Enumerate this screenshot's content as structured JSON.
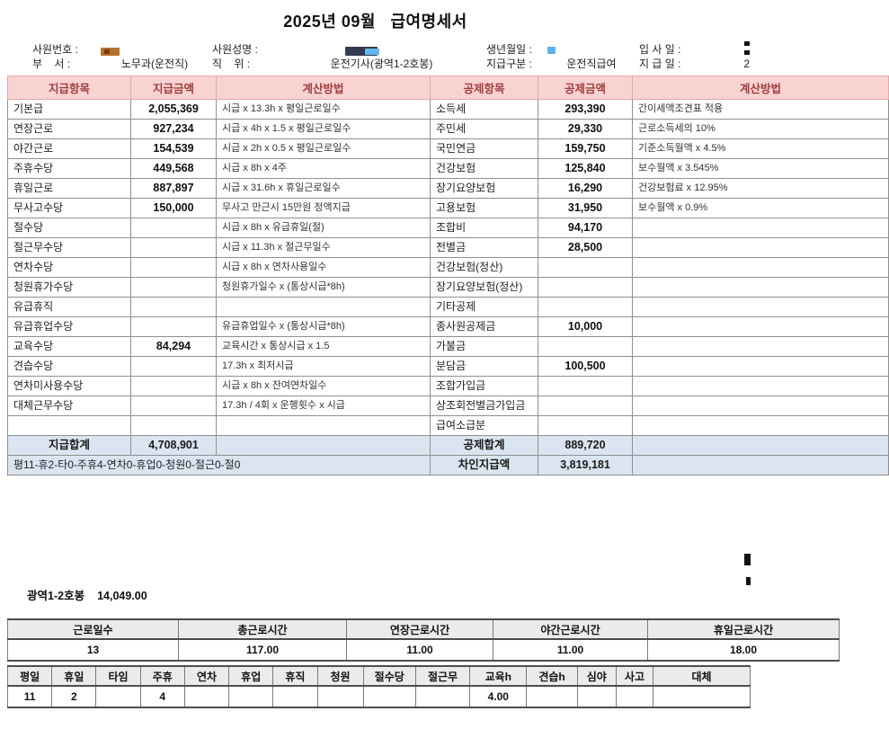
{
  "title": "2025년 09월   급여명세서",
  "employee_info": {
    "emp_no_label": "사원번호 :",
    "dept_label": "부    서 :",
    "dept_value": "노무과(운전직)",
    "name_label": "사원성명 :",
    "position_label": "직    위 :",
    "position_value": "운전기사(광역1-2호봉)",
    "birth_label": "생년월일 :",
    "pay_type_label": "지급구분 :",
    "pay_type_value": "운전직급여",
    "hire_date_label": "입 사 일 :",
    "pay_date_label": "지 급 일 :",
    "pay_date_value": "2"
  },
  "main_table": {
    "headers": [
      "지급항목",
      "지급금액",
      "계산방법",
      "공제항목",
      "공제금액",
      "계산방법"
    ],
    "rows": [
      {
        "pay_item": "기본급",
        "pay_amount": "2,055,369",
        "pay_calc": "시급 x 13.3h x 평일근로일수",
        "ded_item": "소득세",
        "ded_amount": "293,390",
        "ded_calc": "간이세액조견표 적용"
      },
      {
        "pay_item": "연장근로",
        "pay_amount": "927,234",
        "pay_calc": "시급 x 4h x 1.5 x 평일근로일수",
        "ded_item": "주민세",
        "ded_amount": "29,330",
        "ded_calc": "근로소득세의 10%"
      },
      {
        "pay_item": "야간근로",
        "pay_amount": "154,539",
        "pay_calc": "시급 x 2h x 0.5 x 평일근로일수",
        "ded_item": "국민연금",
        "ded_amount": "159,750",
        "ded_calc": "기준소득월액 x 4.5%"
      },
      {
        "pay_item": "주휴수당",
        "pay_amount": "449,568",
        "pay_calc": "시급 x 8h x 4주",
        "ded_item": "건강보험",
        "ded_amount": "125,840",
        "ded_calc": "보수월액 x 3.545%"
      },
      {
        "pay_item": "휴일근로",
        "pay_amount": "887,897",
        "pay_calc": "시급 x 31.6h x 휴일근로일수",
        "ded_item": "장기요양보험",
        "ded_amount": "16,290",
        "ded_calc": "건강보험료 x 12.95%"
      },
      {
        "pay_item": "무사고수당",
        "pay_amount": "150,000",
        "pay_calc": "무사고 만근시 15만원 정액지급",
        "ded_item": "고용보험",
        "ded_amount": "31,950",
        "ded_calc": "보수월액 x 0.9%"
      },
      {
        "pay_item": "절수당",
        "pay_amount": "",
        "pay_calc": "시급 x 8h x 유급휴일(절)",
        "ded_item": "조합비",
        "ded_amount": "94,170",
        "ded_calc": ""
      },
      {
        "pay_item": "절근무수당",
        "pay_amount": "",
        "pay_calc": "시급 x 11.3h x 절근무일수",
        "ded_item": "전별금",
        "ded_amount": "28,500",
        "ded_calc": ""
      },
      {
        "pay_item": "연차수당",
        "pay_amount": "",
        "pay_calc": "시급 x 8h x 연차사용일수",
        "ded_item": "건강보험(정산)",
        "ded_amount": "",
        "ded_calc": ""
      },
      {
        "pay_item": "청원휴가수당",
        "pay_amount": "",
        "pay_calc": "청원휴가일수 x (통상시급*8h)",
        "ded_item": "장기요양보험(정산)",
        "ded_amount": "",
        "ded_calc": ""
      },
      {
        "pay_item": "유급휴직",
        "pay_amount": "",
        "pay_calc": "",
        "ded_item": "기타공제",
        "ded_amount": "",
        "ded_calc": ""
      },
      {
        "pay_item": "유급휴업수당",
        "pay_amount": "",
        "pay_calc": "유급휴업일수 x (통상시급*8h)",
        "ded_item": "종사원공제금",
        "ded_amount": "10,000",
        "ded_calc": ""
      },
      {
        "pay_item": "교육수당",
        "pay_amount": "84,294",
        "pay_calc": "교육시간 x 통상시급 x 1.5",
        "ded_item": "가불금",
        "ded_amount": "",
        "ded_calc": ""
      },
      {
        "pay_item": "견습수당",
        "pay_amount": "",
        "pay_calc": "17.3h x 최저시급",
        "ded_item": "분담금",
        "ded_amount": "100,500",
        "ded_calc": ""
      },
      {
        "pay_item": "연차미사용수당",
        "pay_amount": "",
        "pay_calc": "시급 x 8h x 잔여연차일수",
        "ded_item": "조합가입금",
        "ded_amount": "",
        "ded_calc": ""
      },
      {
        "pay_item": "대체근무수당",
        "pay_amount": "",
        "pay_calc": "17.3h / 4회 x 운행횟수 x 시급",
        "ded_item": "상조회전별금가입금",
        "ded_amount": "",
        "ded_calc": ""
      },
      {
        "pay_item": "",
        "pay_amount": "",
        "pay_calc": "",
        "ded_item": "급여소급분",
        "ded_amount": "",
        "ded_calc": ""
      }
    ],
    "totals": {
      "pay_total_label": "지급합계",
      "pay_total_amount": "4,708,901",
      "ded_total_label": "공제합계",
      "ded_total_amount": "889,720",
      "summary_note": "평11-휴2-타0-주휴4-연차0-휴업0-청원0-절근0-절0",
      "net_pay_label": "차인지급액",
      "net_pay_amount": "3,819,181"
    }
  },
  "grade_line": {
    "grade": "광역1-2호봉",
    "hourly_rate": "14,049.00"
  },
  "hours_table": {
    "headers": [
      "근로일수",
      "총근로시간",
      "연장근로시간",
      "야간근로시간",
      "휴일근로시간"
    ],
    "values": [
      "13",
      "117.00",
      "11.00",
      "11.00",
      "18.00"
    ]
  },
  "days_table": {
    "headers": [
      "평일",
      "휴일",
      "타임",
      "주휴",
      "연차",
      "휴업",
      "휴직",
      "청원",
      "절수당",
      "절근무",
      "교육h",
      "견습h",
      "심야",
      "사고",
      "대체"
    ],
    "values": [
      "11",
      "2",
      "",
      "4",
      "",
      "",
      "",
      "",
      "",
      "",
      "4.00",
      "",
      "",
      "",
      ""
    ]
  },
  "colors": {
    "header_bg": "#f9d2d2",
    "header_text": "#9e4040",
    "total_row_bg": "#dbe5f1",
    "summary_header_bg": "#ebebeb"
  }
}
